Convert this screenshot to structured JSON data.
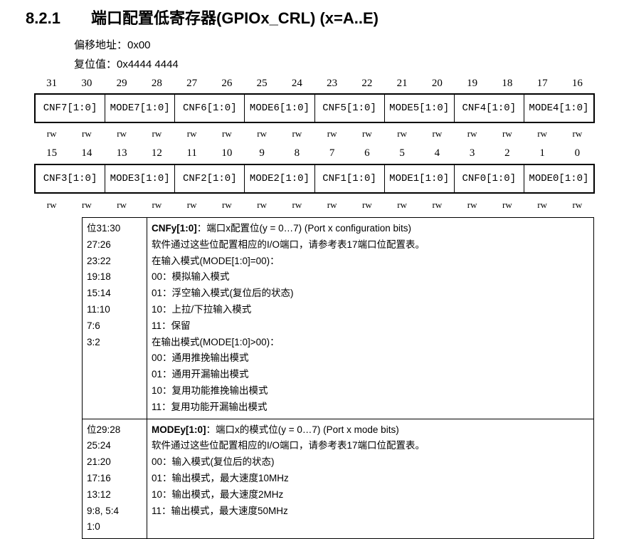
{
  "heading": {
    "number": "8.2.1",
    "title": "端口配置低寄存器(GPIOx_CRL) (x=A..E)"
  },
  "offset": "偏移地址：0x00",
  "reset": "复位值：0x4444 4444",
  "rows": [
    {
      "bits": [
        "31",
        "30",
        "29",
        "28",
        "27",
        "26",
        "25",
        "24",
        "23",
        "22",
        "21",
        "20",
        "19",
        "18",
        "17",
        "16"
      ],
      "fields": [
        "CNF7[1:0]",
        "MODE7[1:0]",
        "CNF6[1:0]",
        "MODE6[1:0]",
        "CNF5[1:0]",
        "MODE5[1:0]",
        "CNF4[1:0]",
        "MODE4[1:0]"
      ],
      "access": [
        "rw",
        "rw",
        "rw",
        "rw",
        "rw",
        "rw",
        "rw",
        "rw",
        "rw",
        "rw",
        "rw",
        "rw",
        "rw",
        "rw",
        "rw",
        "rw"
      ]
    },
    {
      "bits": [
        "15",
        "14",
        "13",
        "12",
        "11",
        "10",
        "9",
        "8",
        "7",
        "6",
        "5",
        "4",
        "3",
        "2",
        "1",
        "0"
      ],
      "fields": [
        "CNF3[1:0]",
        "MODE3[1:0]",
        "CNF2[1:0]",
        "MODE2[1:0]",
        "CNF1[1:0]",
        "MODE1[1:0]",
        "CNF0[1:0]",
        "MODE0[1:0]"
      ],
      "access": [
        "rw",
        "rw",
        "rw",
        "rw",
        "rw",
        "rw",
        "rw",
        "rw",
        "rw",
        "rw",
        "rw",
        "rw",
        "rw",
        "rw",
        "rw",
        "rw"
      ]
    }
  ],
  "descriptions": [
    {
      "bits": [
        "位31:30",
        "27:26",
        "23:22",
        "19:18",
        "15:14",
        "11:10",
        "7:6",
        "3:2"
      ],
      "name": "CNFy[1:0]",
      "summary": "：端口x配置位(y = 0…7) (Port x configuration bits)",
      "lines": [
        "软件通过这些位配置相应的I/O端口，请参考表17端口位配置表。",
        "在输入模式(MODE[1:0]=00)：",
        "00：模拟输入模式",
        "01：浮空输入模式(复位后的状态)",
        "10：上拉/下拉输入模式",
        "11：保留",
        "在输出模式(MODE[1:0]>00)：",
        "00：通用推挽输出模式",
        "01：通用开漏输出模式",
        "10：复用功能推挽输出模式",
        "11：复用功能开漏输出模式"
      ]
    },
    {
      "bits": [
        "位29:28",
        "25:24",
        "21:20",
        "17:16",
        "13:12",
        "9:8, 5:4",
        "1:0"
      ],
      "name": "MODEy[1:0]",
      "summary": "：端口x的模式位(y = 0…7) (Port x mode bits)",
      "lines": [
        "软件通过这些位配置相应的I/O端口，请参考表17端口位配置表。",
        "00：输入模式(复位后的状态)",
        "01：输出模式，最大速度10MHz",
        "10：输出模式，最大速度2MHz",
        "11：输出模式，最大速度50MHz"
      ]
    }
  ]
}
